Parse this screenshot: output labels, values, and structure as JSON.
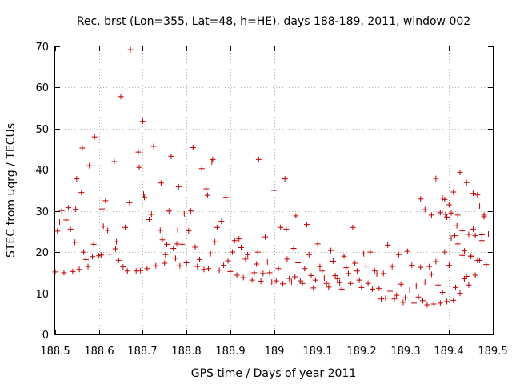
{
  "chart_data": {
    "type": "scatter",
    "title": "Rec. brst (Lon=355, Lat=48, h=HE), days 188-189, 2011, window 002",
    "xlabel": "GPS time / Days of year 2011",
    "ylabel": "STEC from uqrg / TECUs",
    "xlim": [
      188.5,
      189.5
    ],
    "ylim": [
      0,
      70
    ],
    "grid": true,
    "marker": "+",
    "color": "#c00000",
    "x_ticks": [
      188.5,
      188.6,
      188.7,
      188.8,
      188.9,
      189.0,
      189.1,
      189.2,
      189.3,
      189.4,
      189.5
    ],
    "x_tick_labels": [
      "188.5",
      "188.6",
      "188.7",
      "188.8",
      "188.9",
      "189",
      "189.1",
      "189.2",
      "189.3",
      "189.4",
      "189.5"
    ],
    "y_ticks": [
      0,
      10,
      20,
      30,
      40,
      50,
      60,
      70
    ],
    "y_tick_labels": [
      "0",
      "10",
      "20",
      "30",
      "40",
      "50",
      "60",
      "70"
    ],
    "series": [
      {
        "name": "STEC",
        "points": [
          [
            188.5,
            15.2
          ],
          [
            188.505,
            25.1
          ],
          [
            188.51,
            27.3
          ],
          [
            188.515,
            30.1
          ],
          [
            188.52,
            15.0
          ],
          [
            188.525,
            27.8
          ],
          [
            188.53,
            30.8
          ],
          [
            188.535,
            25.6
          ],
          [
            188.54,
            15.3
          ],
          [
            188.545,
            22.4
          ],
          [
            188.547,
            30.4
          ],
          [
            188.549,
            37.8
          ],
          [
            188.555,
            15.8
          ],
          [
            188.56,
            34.5
          ],
          [
            188.562,
            45.3
          ],
          [
            188.565,
            20.0
          ],
          [
            188.57,
            18.2
          ],
          [
            188.575,
            16.5
          ],
          [
            188.578,
            41.0
          ],
          [
            188.585,
            18.9
          ],
          [
            188.588,
            21.9
          ],
          [
            188.59,
            48.0
          ],
          [
            188.6,
            19.1
          ],
          [
            188.605,
            19.3
          ],
          [
            188.607,
            30.5
          ],
          [
            188.61,
            26.3
          ],
          [
            188.615,
            32.5
          ],
          [
            188.62,
            25.3
          ],
          [
            188.625,
            19.5
          ],
          [
            188.635,
            42.0
          ],
          [
            188.638,
            20.8
          ],
          [
            188.64,
            22.5
          ],
          [
            188.645,
            18.0
          ],
          [
            188.65,
            57.8
          ],
          [
            188.655,
            16.4
          ],
          [
            188.66,
            26.0
          ],
          [
            188.665,
            15.4
          ],
          [
            188.67,
            32.0
          ],
          [
            188.672,
            69.2
          ],
          [
            188.685,
            15.4
          ],
          [
            188.69,
            44.3
          ],
          [
            188.692,
            40.6
          ],
          [
            188.695,
            15.5
          ],
          [
            188.7,
            51.8
          ],
          [
            188.702,
            34.1
          ],
          [
            188.704,
            33.3
          ],
          [
            188.71,
            16.0
          ],
          [
            188.715,
            27.9
          ],
          [
            188.72,
            29.2
          ],
          [
            188.725,
            45.7
          ],
          [
            188.73,
            16.7
          ],
          [
            188.74,
            25.3
          ],
          [
            188.742,
            36.8
          ],
          [
            188.745,
            23.0
          ],
          [
            188.75,
            17.3
          ],
          [
            188.752,
            19.4
          ],
          [
            188.755,
            21.9
          ],
          [
            188.76,
            30.0
          ],
          [
            188.765,
            43.3
          ],
          [
            188.77,
            20.9
          ],
          [
            188.775,
            18.5
          ],
          [
            188.778,
            22.0
          ],
          [
            188.78,
            25.4
          ],
          [
            188.782,
            35.9
          ],
          [
            188.785,
            16.7
          ],
          [
            188.79,
            21.9
          ],
          [
            188.795,
            29.3
          ],
          [
            188.8,
            17.4
          ],
          [
            188.805,
            25.2
          ],
          [
            188.81,
            30.0
          ],
          [
            188.815,
            45.4
          ],
          [
            188.82,
            21.2
          ],
          [
            188.825,
            16.5
          ],
          [
            188.83,
            18.2
          ],
          [
            188.835,
            40.3
          ],
          [
            188.84,
            15.8
          ],
          [
            188.845,
            35.4
          ],
          [
            188.848,
            33.8
          ],
          [
            188.85,
            16.0
          ],
          [
            188.855,
            19.6
          ],
          [
            188.858,
            41.9
          ],
          [
            188.86,
            42.5
          ],
          [
            188.865,
            22.5
          ],
          [
            188.87,
            26.0
          ],
          [
            188.875,
            15.6
          ],
          [
            188.88,
            27.5
          ],
          [
            188.885,
            16.8
          ],
          [
            188.89,
            33.3
          ],
          [
            188.895,
            17.9
          ],
          [
            188.9,
            15.3
          ],
          [
            188.905,
            20.0
          ],
          [
            188.91,
            22.8
          ],
          [
            188.915,
            14.4
          ],
          [
            188.92,
            23.2
          ],
          [
            188.925,
            21.1
          ],
          [
            188.93,
            13.8
          ],
          [
            188.935,
            18.3
          ],
          [
            188.94,
            19.4
          ],
          [
            188.945,
            14.7
          ],
          [
            188.95,
            13.2
          ],
          [
            188.955,
            15.0
          ],
          [
            188.96,
            17.1
          ],
          [
            188.963,
            20.0
          ],
          [
            188.965,
            42.5
          ],
          [
            188.97,
            12.9
          ],
          [
            188.975,
            14.8
          ],
          [
            188.98,
            23.7
          ],
          [
            188.985,
            17.6
          ],
          [
            188.99,
            15.0
          ],
          [
            188.995,
            12.7
          ],
          [
            189.0,
            35.0
          ],
          [
            189.005,
            13.0
          ],
          [
            189.01,
            16.0
          ],
          [
            189.015,
            26.0
          ],
          [
            189.02,
            12.3
          ],
          [
            189.025,
            37.8
          ],
          [
            189.028,
            25.6
          ],
          [
            189.03,
            18.3
          ],
          [
            189.035,
            13.6
          ],
          [
            189.04,
            12.7
          ],
          [
            189.045,
            20.9
          ],
          [
            189.048,
            14.0
          ],
          [
            189.05,
            28.8
          ],
          [
            189.055,
            17.4
          ],
          [
            189.06,
            13.0
          ],
          [
            189.065,
            12.4
          ],
          [
            189.07,
            16.0
          ],
          [
            189.075,
            26.7
          ],
          [
            189.08,
            19.4
          ],
          [
            189.085,
            14.3
          ],
          [
            189.09,
            11.3
          ],
          [
            189.095,
            13.2
          ],
          [
            189.1,
            22.0
          ],
          [
            189.105,
            16.5
          ],
          [
            189.11,
            15.4
          ],
          [
            189.115,
            13.7
          ],
          [
            189.12,
            12.4
          ],
          [
            189.125,
            11.5
          ],
          [
            189.13,
            20.4
          ],
          [
            189.135,
            17.8
          ],
          [
            189.14,
            14.3
          ],
          [
            189.145,
            13.5
          ],
          [
            189.15,
            12.6
          ],
          [
            189.155,
            11.0
          ],
          [
            189.16,
            19.0
          ],
          [
            189.165,
            16.2
          ],
          [
            189.17,
            14.8
          ],
          [
            189.175,
            12.4
          ],
          [
            189.18,
            26.0
          ],
          [
            189.185,
            17.3
          ],
          [
            189.19,
            15.4
          ],
          [
            189.195,
            13.2
          ],
          [
            189.2,
            11.4
          ],
          [
            189.205,
            19.6
          ],
          [
            189.21,
            16.6
          ],
          [
            189.215,
            12.4
          ],
          [
            189.22,
            20.0
          ],
          [
            189.225,
            11.0
          ],
          [
            189.23,
            15.5
          ],
          [
            189.235,
            14.7
          ],
          [
            189.24,
            11.2
          ],
          [
            189.245,
            8.6
          ],
          [
            189.25,
            14.8
          ],
          [
            189.255,
            8.8
          ],
          [
            189.26,
            21.7
          ],
          [
            189.265,
            10.5
          ],
          [
            189.27,
            16.5
          ],
          [
            189.275,
            8.6
          ],
          [
            189.28,
            9.5
          ],
          [
            189.285,
            19.4
          ],
          [
            189.29,
            12.2
          ],
          [
            189.295,
            7.8
          ],
          [
            189.3,
            8.9
          ],
          [
            189.305,
            20.2
          ],
          [
            189.31,
            10.8
          ],
          [
            189.315,
            16.8
          ],
          [
            189.32,
            7.6
          ],
          [
            189.325,
            11.8
          ],
          [
            189.33,
            9.1
          ],
          [
            189.335,
            16.3
          ],
          [
            189.34,
            8.2
          ],
          [
            189.345,
            12.7
          ],
          [
            189.35,
            7.2
          ],
          [
            189.355,
            16.5
          ],
          [
            189.36,
            14.6
          ],
          [
            189.365,
            7.4
          ],
          [
            189.37,
            17.7
          ],
          [
            189.375,
            12.0
          ],
          [
            189.38,
            7.6
          ],
          [
            189.385,
            10.2
          ],
          [
            189.39,
            20.0
          ],
          [
            189.395,
            8.0
          ],
          [
            189.4,
            16.8
          ],
          [
            189.405,
            23.4
          ],
          [
            189.41,
            8.3
          ],
          [
            189.415,
            11.4
          ],
          [
            189.42,
            29.0
          ],
          [
            189.425,
            10.0
          ],
          [
            189.43,
            19.2
          ],
          [
            189.435,
            13.5
          ],
          [
            189.44,
            14.1
          ],
          [
            189.445,
            12.0
          ],
          [
            189.45,
            19.0
          ],
          [
            189.455,
            25.6
          ],
          [
            189.46,
            14.4
          ],
          [
            189.465,
            33.9
          ],
          [
            189.47,
            18.0
          ],
          [
            189.475,
            22.8
          ],
          [
            189.48,
            29.0
          ],
          [
            189.335,
            32.9
          ],
          [
            189.345,
            30.3
          ],
          [
            189.36,
            29.0
          ],
          [
            189.37,
            37.9
          ],
          [
            189.375,
            29.3
          ],
          [
            189.38,
            29.6
          ],
          [
            189.385,
            33.1
          ],
          [
            189.39,
            32.8
          ],
          [
            189.392,
            29.2
          ],
          [
            189.395,
            28.5
          ],
          [
            189.4,
            31.5
          ],
          [
            189.405,
            29.5
          ],
          [
            189.41,
            34.6
          ],
          [
            189.413,
            24.0
          ],
          [
            189.418,
            26.4
          ],
          [
            189.42,
            22.0
          ],
          [
            189.425,
            39.4
          ],
          [
            189.43,
            25.2
          ],
          [
            189.435,
            20.3
          ],
          [
            189.44,
            36.9
          ],
          [
            189.445,
            24.3
          ],
          [
            189.45,
            19.0
          ],
          [
            189.455,
            34.3
          ],
          [
            189.46,
            24.0
          ],
          [
            189.465,
            18.0
          ],
          [
            189.47,
            31.2
          ],
          [
            189.475,
            24.2
          ],
          [
            189.48,
            28.6
          ],
          [
            189.485,
            17.0
          ],
          [
            189.49,
            24.4
          ]
        ]
      }
    ]
  }
}
